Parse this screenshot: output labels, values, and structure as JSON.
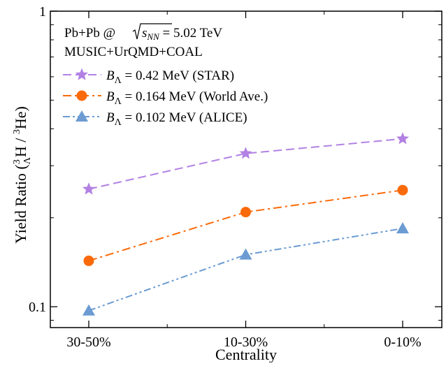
{
  "chart_data": {
    "type": "line",
    "xlabel": "Centrality",
    "ylabel": "Yield Ratio",
    "ylabel_math": {
      "open": "(",
      "sup1": "3",
      "sub": "Λ",
      "main1": "H / ",
      "sup2": "3",
      "main2": "He",
      "close": ")"
    },
    "yscale": "log",
    "ylim": [
      0.085,
      1.0
    ],
    "yticks": [
      {
        "value": 0.1,
        "label": "0.1"
      },
      {
        "value": 1.0,
        "label": "1"
      }
    ],
    "categories": [
      "30-50%",
      "10-30%",
      "0-10%"
    ],
    "annotations": {
      "collision": {
        "pre": "Pb+Pb @",
        "radicand": "s",
        "radicand_sub": "NN",
        "post": " = 5.02 TeV"
      },
      "model": "MUSIC+UrQMD+COAL"
    },
    "series": [
      {
        "name": "B_Λ = 0.42 MeV (STAR)",
        "legend": {
          "sym": "B",
          "sub": "Λ",
          "text": " = 0.42 MeV (STAR)"
        },
        "values": [
          0.25,
          0.33,
          0.37
        ],
        "color": "#b281e3",
        "marker": "star",
        "dash": "12,6"
      },
      {
        "name": "B_Λ = 0.164 MeV (World Ave.)",
        "legend": {
          "sym": "B",
          "sub": "Λ",
          "text": " = 0.164 MeV (World Ave.)"
        },
        "values": [
          0.143,
          0.209,
          0.248
        ],
        "color": "#fa6a0a",
        "marker": "circle",
        "dash": "12,5,3,5"
      },
      {
        "name": "B_Λ = 0.102 MeV (ALICE)",
        "legend": {
          "sym": "B",
          "sub": "Λ",
          "text": " = 0.102 MeV (ALICE)"
        },
        "values": [
          0.097,
          0.15,
          0.184
        ],
        "color": "#6b9bd2",
        "marker": "triangle",
        "dash": "10,4,3,4,3,4"
      }
    ]
  }
}
